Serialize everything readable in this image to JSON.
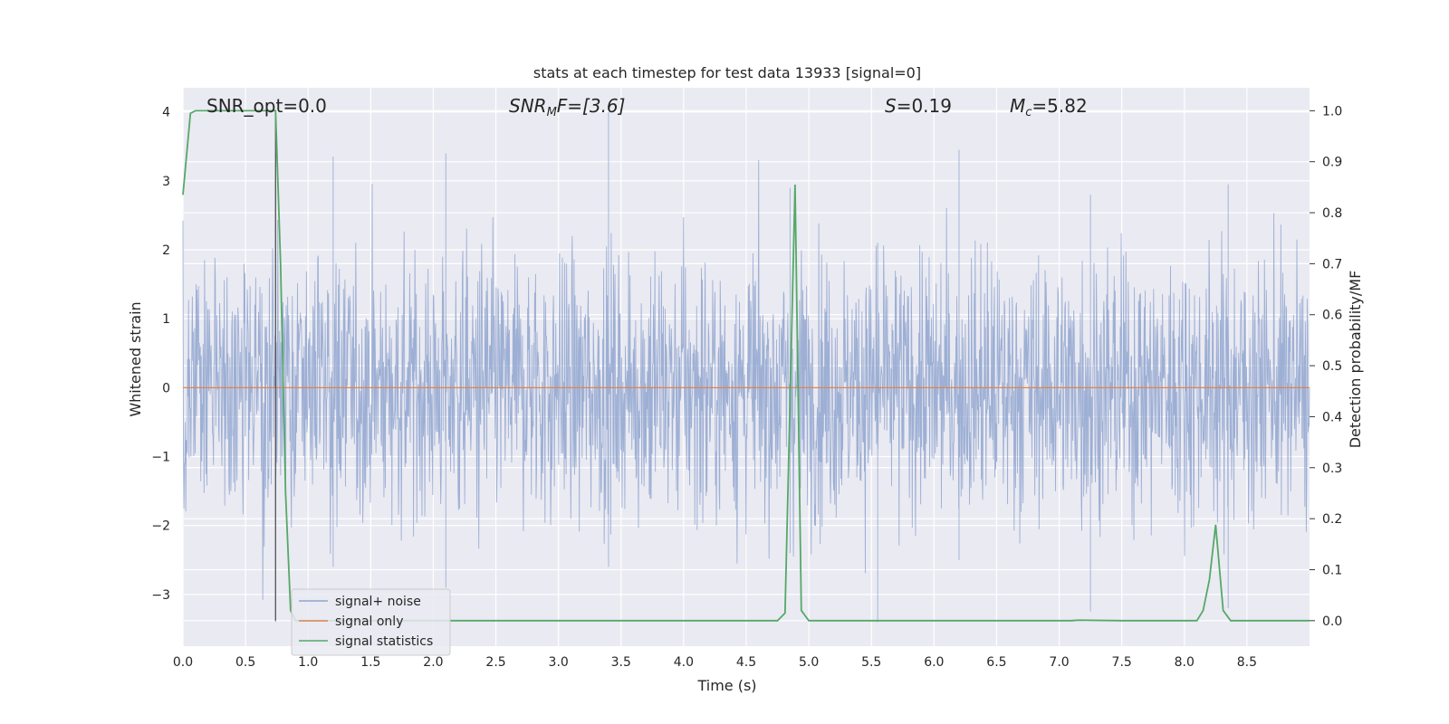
{
  "chart_data": {
    "type": "line",
    "title": "stats at each timestep for test data 13933 [signal=0]",
    "xlabel": "Time (s)",
    "ylabel_left": "Whitened strain",
    "ylabel_right": "Detection probability/MF",
    "xlim": [
      0,
      9.0
    ],
    "ylim_left": [
      -3.75,
      4.35
    ],
    "ylim_right": [
      -0.05,
      1.045
    ],
    "x_ticks": [
      "0.0",
      "0.5",
      "1.0",
      "1.5",
      "2.0",
      "2.5",
      "3.0",
      "3.5",
      "4.0",
      "4.5",
      "5.0",
      "5.5",
      "6.0",
      "6.5",
      "7.0",
      "7.5",
      "8.0",
      "8.5"
    ],
    "y_ticks_left": [
      "4",
      "3",
      "2",
      "1",
      "0",
      "−1",
      "−2",
      "−3"
    ],
    "y_ticks_right": [
      "1.0",
      "0.9",
      "0.8",
      "0.7",
      "0.6",
      "0.5",
      "0.4",
      "0.3",
      "0.2",
      "0.1",
      "0.0"
    ],
    "grid": true,
    "legend_position": "lower-left",
    "annotations": {
      "snr_opt": "SNR_opt=0.0",
      "snr_mf_sym": "SNR",
      "snr_mf_sub": "M",
      "snr_mf_rest": "F=[3.6]",
      "s_sym": "S",
      "s_rest": "=0.19",
      "mc_sym": "M",
      "mc_sub": "c",
      "mc_rest": "=5.82"
    },
    "vertical_marker_x": 0.74,
    "series": [
      {
        "name": "signal+ noise",
        "axis": "left",
        "color": "#8fa5cf",
        "description_stat": "whitened noise, approx. range [-3.4, 4.0]",
        "peaks": [
          [
            0.74,
            -3.4,
            3.1
          ],
          [
            1.2,
            -2.6,
            3.35
          ],
          [
            2.1,
            -2.9,
            3.4
          ],
          [
            3.4,
            -2.6,
            4.0
          ],
          [
            4.85,
            -2.4,
            2.9
          ],
          [
            5.55,
            -3.4,
            2.1
          ],
          [
            6.2,
            -2.5,
            3.45
          ],
          [
            7.25,
            -3.25,
            2.8
          ],
          [
            8.35,
            -3.2,
            2.95
          ]
        ]
      },
      {
        "name": "signal only",
        "axis": "left",
        "color": "#dd8452",
        "x": [
          0,
          9.0
        ],
        "y": [
          0,
          0
        ]
      },
      {
        "name": "signal statistics",
        "axis": "right",
        "color": "#55a868",
        "x": [
          0,
          0.06,
          0.1,
          0.15,
          0.3,
          0.5,
          0.65,
          0.72,
          0.74,
          0.78,
          0.82,
          0.86,
          0.9,
          1.5,
          2.5,
          3.5,
          4.5,
          4.75,
          4.81,
          4.85,
          4.89,
          4.94,
          5.0,
          5.5,
          6.5,
          7.1,
          7.15,
          7.5,
          8.1,
          8.15,
          8.2,
          8.25,
          8.31,
          8.37,
          8.5,
          9.0
        ],
        "y": [
          0.835,
          0.995,
          1.0,
          1.0,
          1.0,
          1.0,
          1.0,
          1.0,
          1.0,
          0.7,
          0.25,
          0.02,
          0.0,
          0.0,
          0.0,
          0.0,
          0.0,
          0.0,
          0.015,
          0.43,
          0.855,
          0.02,
          0.0,
          0.0,
          0.0,
          0.0,
          0.001,
          0.0,
          0.0,
          0.02,
          0.08,
          0.188,
          0.02,
          0.0,
          0.0,
          0.0
        ]
      }
    ]
  }
}
